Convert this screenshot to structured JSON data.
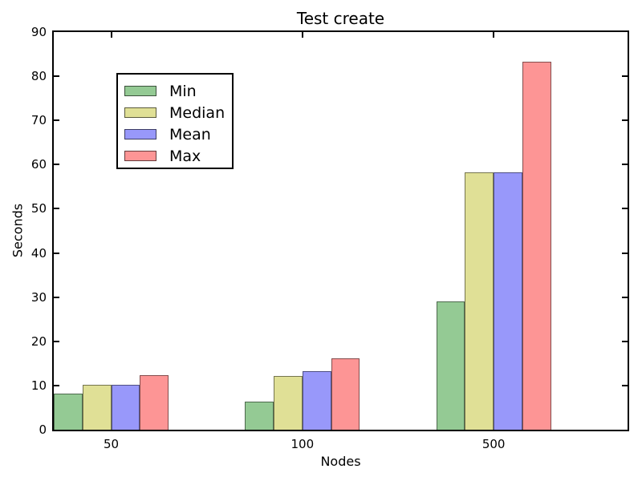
{
  "figure": {
    "background": "#ffffff",
    "axis_color": "#000000",
    "bar_edge_color": "rgba(0,0,0,0.48)"
  },
  "chart_data": {
    "type": "bar",
    "title": "Test create",
    "xlabel": "Nodes",
    "ylabel": "Seconds",
    "categories": [
      "50",
      "100",
      "500"
    ],
    "series": [
      {
        "name": "Min",
        "color": "#94ca94",
        "values": [
          8.1,
          6.3,
          29.0
        ]
      },
      {
        "name": "Median",
        "color": "#e0e096",
        "values": [
          10.1,
          12.1,
          58.2
        ]
      },
      {
        "name": "Mean",
        "color": "#9898fa",
        "values": [
          10.2,
          13.3,
          58.2
        ]
      },
      {
        "name": "Max",
        "color": "#fd9595",
        "values": [
          12.3,
          16.2,
          83.2
        ]
      }
    ],
    "ylim": [
      0,
      90
    ],
    "yticks": [
      0,
      10,
      20,
      30,
      40,
      50,
      60,
      70,
      80,
      90
    ],
    "grid": false,
    "legend_position": "upper left",
    "legend_entries": [
      "Min",
      "Median",
      "Mean",
      "Max"
    ]
  }
}
